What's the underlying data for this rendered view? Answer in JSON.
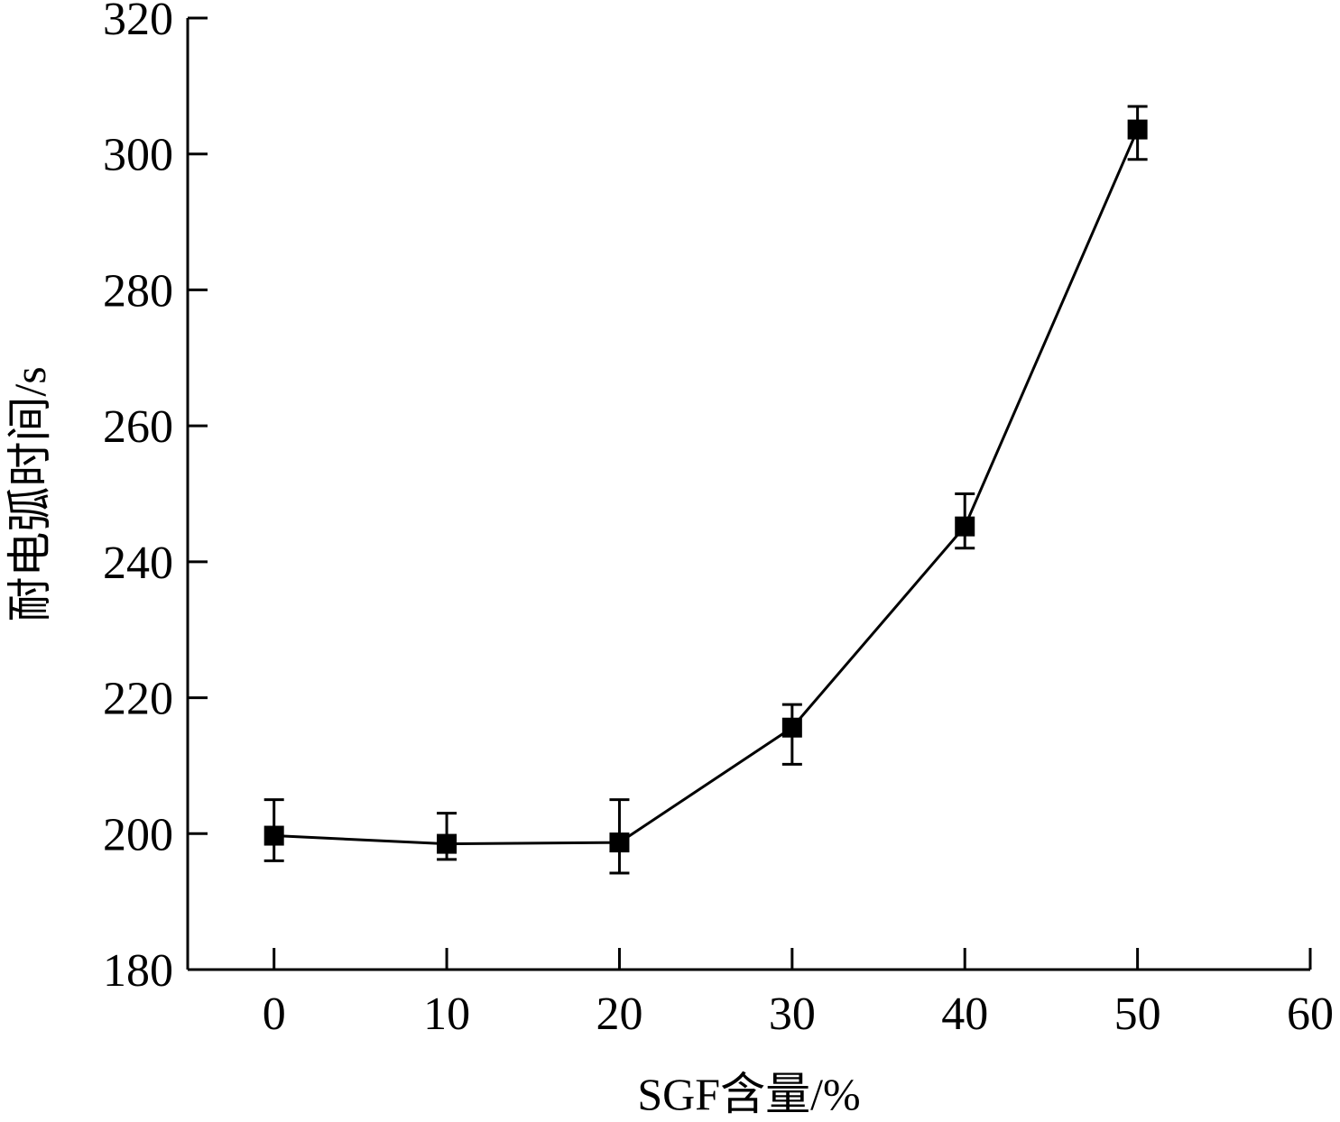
{
  "chart_data": {
    "type": "line",
    "title": "",
    "xlabel": "SGF含量/%",
    "ylabel": "耐电弧时间/s",
    "xlim": [
      -5,
      60
    ],
    "ylim": [
      180,
      320
    ],
    "xticks": [
      0,
      10,
      20,
      30,
      40,
      50,
      60
    ],
    "xtick_labels": [
      "0",
      "10",
      "20",
      "30",
      "40",
      "50",
      "60"
    ],
    "yticks": [
      180,
      200,
      220,
      240,
      260,
      280,
      300,
      320
    ],
    "ytick_labels": [
      "180",
      "200",
      "220",
      "240",
      "260",
      "280",
      "300",
      "320"
    ],
    "grid": false,
    "legend": "none",
    "marker": "square",
    "line_color": "#000000",
    "series": [
      {
        "x": [
          0,
          10,
          20,
          30,
          40,
          50
        ],
        "y": [
          199.7,
          198.5,
          198.7,
          215.6,
          245.2,
          303.6
        ],
        "err_low": [
          196,
          196.2,
          194.2,
          210.2,
          242,
          299.2
        ],
        "err_high": [
          205,
          203,
          205,
          219,
          250,
          307
        ]
      }
    ]
  }
}
